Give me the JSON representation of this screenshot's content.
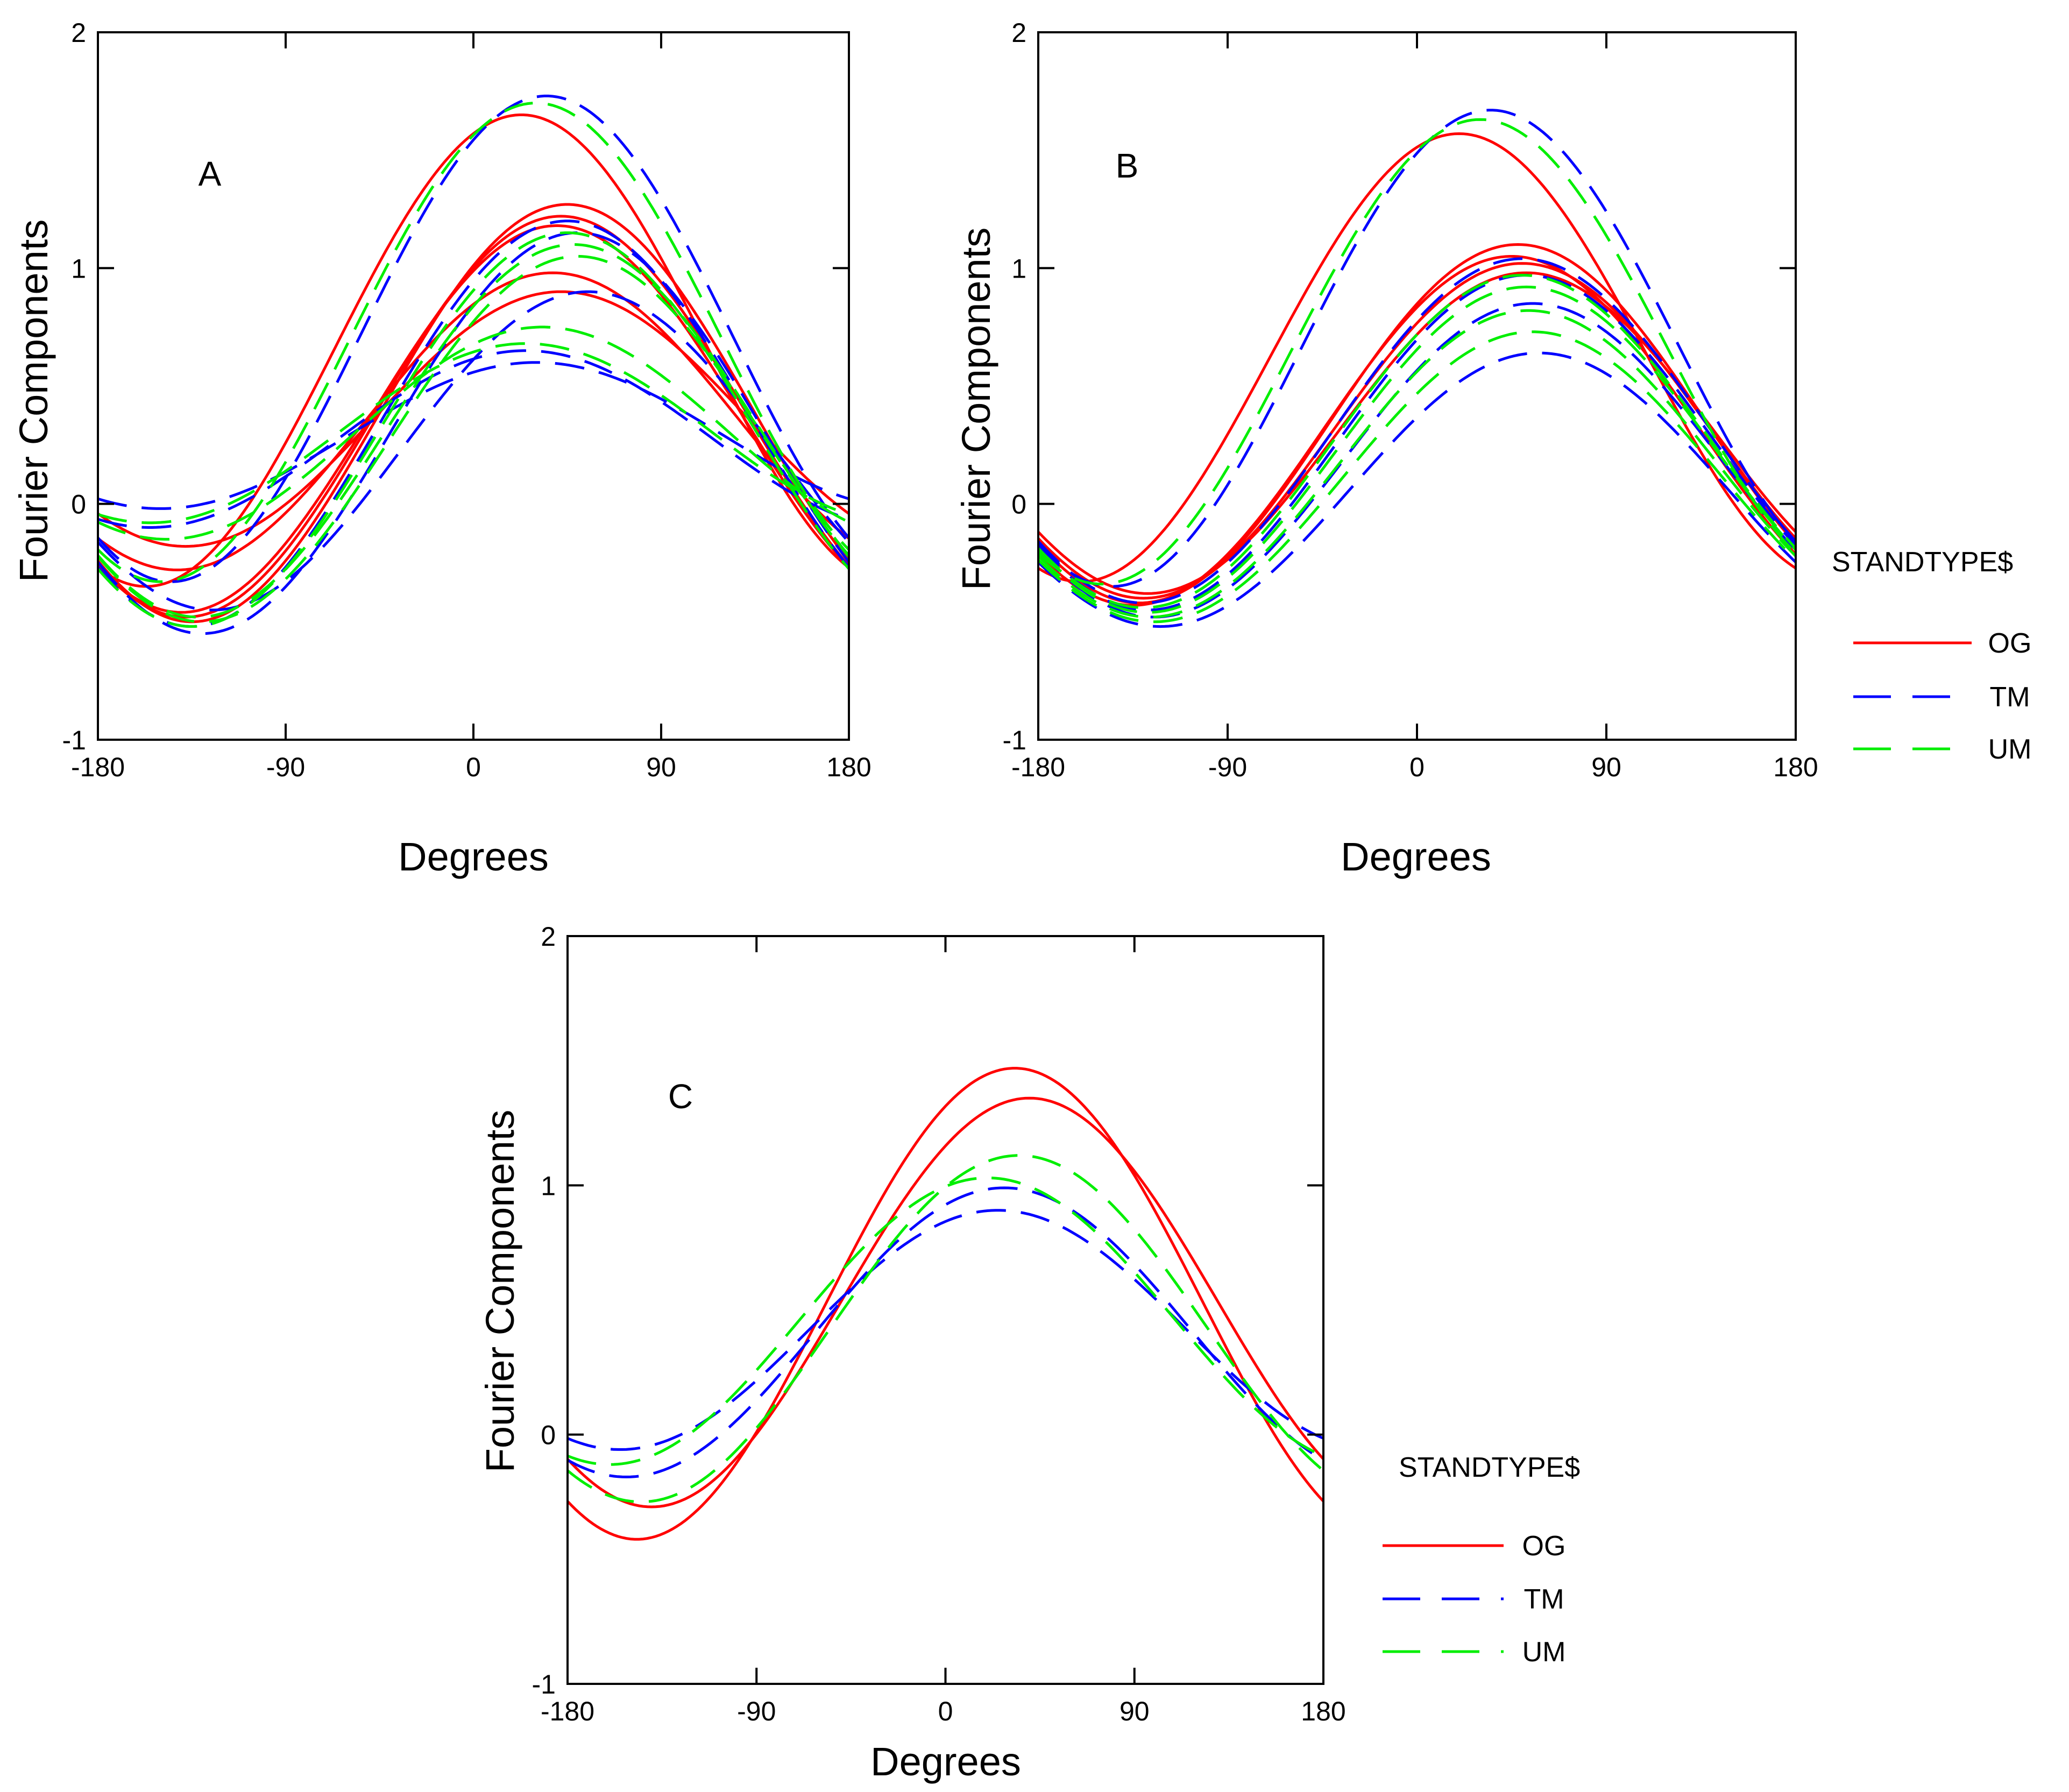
{
  "chart_data": [
    {
      "type": "line",
      "panel_label": "A",
      "xlabel": "Degrees",
      "ylabel": "Fourier Components",
      "xlim": [
        -180,
        180
      ],
      "ylim": [
        -1,
        2
      ],
      "x_ticks": [
        -180,
        -90,
        0,
        90,
        180
      ],
      "y_ticks": [
        -1,
        0,
        1,
        2
      ],
      "legend": null,
      "series": [
        {
          "name": "OG",
          "peak": 1.65,
          "trough": -0.35,
          "phase": 23
        },
        {
          "name": "OG",
          "peak": 1.27,
          "trough": -0.5,
          "phase": 45
        },
        {
          "name": "OG",
          "peak": 1.22,
          "trough": -0.48,
          "phase": 42
        },
        {
          "name": "OG",
          "peak": 1.18,
          "trough": -0.46,
          "phase": 40
        },
        {
          "name": "OG",
          "peak": 0.98,
          "trough": -0.28,
          "phase": 38
        },
        {
          "name": "OG",
          "peak": 0.9,
          "trough": -0.18,
          "phase": 42
        },
        {
          "name": "TM",
          "peak": 1.73,
          "trough": -0.33,
          "phase": 35
        },
        {
          "name": "TM",
          "peak": 1.2,
          "trough": -0.52,
          "phase": 45
        },
        {
          "name": "TM",
          "peak": 1.15,
          "trough": -0.55,
          "phase": 50
        },
        {
          "name": "TM",
          "peak": 0.9,
          "trough": -0.45,
          "phase": 55
        },
        {
          "name": "TM",
          "peak": 0.65,
          "trough": -0.1,
          "phase": 25
        },
        {
          "name": "TM",
          "peak": 0.6,
          "trough": -0.02,
          "phase": 30
        },
        {
          "name": "UM",
          "peak": 1.7,
          "trough": -0.33,
          "phase": 30
        },
        {
          "name": "UM",
          "peak": 1.15,
          "trough": -0.52,
          "phase": 45
        },
        {
          "name": "UM",
          "peak": 1.1,
          "trough": -0.48,
          "phase": 48
        },
        {
          "name": "UM",
          "peak": 1.05,
          "trough": -0.5,
          "phase": 50
        },
        {
          "name": "UM",
          "peak": 0.75,
          "trough": -0.15,
          "phase": 33
        },
        {
          "name": "UM",
          "peak": 0.68,
          "trough": -0.08,
          "phase": 25
        }
      ]
    },
    {
      "type": "line",
      "panel_label": "B",
      "xlabel": "Degrees",
      "ylabel": "Fourier Components",
      "xlim": [
        -180,
        180
      ],
      "ylim": [
        -1,
        2
      ],
      "x_ticks": [
        -180,
        -90,
        0,
        90,
        180
      ],
      "y_ticks": [
        -1,
        0,
        1,
        2
      ],
      "legend": {
        "title": "STANDTYPE$",
        "entries": [
          "OG",
          "TM",
          "UM"
        ]
      },
      "series": [
        {
          "name": "OG",
          "peak": 1.57,
          "trough": -0.33,
          "phase": 20
        },
        {
          "name": "OG",
          "peak": 1.1,
          "trough": -0.42,
          "phase": 48
        },
        {
          "name": "OG",
          "peak": 1.05,
          "trough": -0.43,
          "phase": 45
        },
        {
          "name": "OG",
          "peak": 1.02,
          "trough": -0.4,
          "phase": 50
        },
        {
          "name": "OG",
          "peak": 0.98,
          "trough": -0.38,
          "phase": 52
        },
        {
          "name": "TM",
          "peak": 1.67,
          "trough": -0.35,
          "phase": 35
        },
        {
          "name": "TM",
          "peak": 1.04,
          "trough": -0.42,
          "phase": 50
        },
        {
          "name": "TM",
          "peak": 0.97,
          "trough": -0.45,
          "phase": 52
        },
        {
          "name": "TM",
          "peak": 0.85,
          "trough": -0.48,
          "phase": 55
        },
        {
          "name": "TM",
          "peak": 0.64,
          "trough": -0.52,
          "phase": 58
        },
        {
          "name": "UM",
          "peak": 1.63,
          "trough": -0.34,
          "phase": 30
        },
        {
          "name": "UM",
          "peak": 0.97,
          "trough": -0.44,
          "phase": 50
        },
        {
          "name": "UM",
          "peak": 0.92,
          "trough": -0.46,
          "phase": 52
        },
        {
          "name": "UM",
          "peak": 0.82,
          "trough": -0.48,
          "phase": 53
        },
        {
          "name": "UM",
          "peak": 0.73,
          "trough": -0.5,
          "phase": 55
        }
      ]
    },
    {
      "type": "line",
      "panel_label": "C",
      "xlabel": "Degrees",
      "ylabel": "Fourier Components",
      "xlim": [
        -180,
        180
      ],
      "ylim": [
        -1,
        2
      ],
      "x_ticks": [
        -180,
        -90,
        0,
        90,
        180
      ],
      "y_ticks": [
        -1,
        0,
        1,
        2
      ],
      "legend": {
        "title": "STANDTYPE$",
        "entries": [
          "OG",
          "TM",
          "UM"
        ]
      },
      "series": [
        {
          "name": "OG",
          "peak": 1.47,
          "trough": -0.42,
          "phase": 33
        },
        {
          "name": "OG",
          "peak": 1.35,
          "trough": -0.29,
          "phase": 40
        },
        {
          "name": "TM",
          "peak": 0.99,
          "trough": -0.17,
          "phase": 28
        },
        {
          "name": "TM",
          "peak": 0.9,
          "trough": -0.06,
          "phase": 25
        },
        {
          "name": "UM",
          "peak": 1.12,
          "trough": -0.27,
          "phase": 35
        },
        {
          "name": "UM",
          "peak": 1.03,
          "trough": -0.12,
          "phase": 20
        }
      ]
    }
  ],
  "colors": {
    "OG": "#ff0000",
    "TM": "#0000ff",
    "UM": "#00ee00"
  },
  "dash_styles": {
    "OG": "solid",
    "TM": "long-dash",
    "UM": "long-dash"
  }
}
